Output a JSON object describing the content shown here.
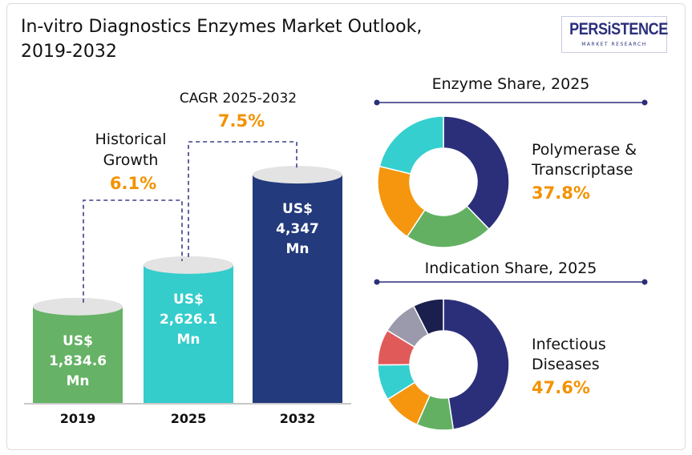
{
  "title": {
    "line1": "In-vitro Diagnostics Enzymes Market Outlook,",
    "line2": "2019-2032"
  },
  "logo": {
    "wordmark": "PERSiSTENCE",
    "tagline": "MARKET RESEARCH"
  },
  "chart_data": [
    {
      "type": "bar",
      "categories": [
        "2019",
        "2025",
        "2032"
      ],
      "values": [
        1834.6,
        2626.1,
        4347
      ],
      "value_labels": [
        [
          "US$",
          "1,834.6",
          "Mn"
        ],
        [
          "US$",
          "2,626.1",
          "Mn"
        ],
        [
          "US$",
          "4,347",
          "Mn"
        ]
      ],
      "colors": [
        "#66b266",
        "#35cccc",
        "#233a7c"
      ],
      "ylim": [
        0,
        4800
      ],
      "annotations": [
        {
          "text_lines": [
            "Historical",
            "Growth"
          ],
          "value": "6.1%",
          "value_color": "#f39200"
        },
        {
          "text_lines": [
            "CAGR 2025-2032"
          ],
          "value": "7.5%",
          "value_color": "#f39200"
        }
      ]
    },
    {
      "type": "pie",
      "title": "Enzyme Share, 2025",
      "donut": true,
      "slices": [
        {
          "label": "Polymerase & Transcriptase",
          "value": 37.8,
          "color": "#2b2f7a"
        },
        {
          "label": "",
          "value": 21.5,
          "color": "#63b063"
        },
        {
          "label": "",
          "value": 19.5,
          "color": "#f5960e"
        },
        {
          "label": "",
          "value": 21.2,
          "color": "#35cfcf"
        }
      ],
      "callout": {
        "label_lines": [
          "Polymerase &",
          "Transcriptase"
        ],
        "value": "37.8%",
        "value_color": "#f39200"
      }
    },
    {
      "type": "pie",
      "title": "Indication Share, 2025",
      "donut": true,
      "slices": [
        {
          "label": "Infectious Diseases",
          "value": 47.6,
          "color": "#2b2f7a"
        },
        {
          "label": "",
          "value": 9.0,
          "color": "#63b063"
        },
        {
          "label": "",
          "value": 9.5,
          "color": "#f5960e"
        },
        {
          "label": "",
          "value": 8.8,
          "color": "#35cfcf"
        },
        {
          "label": "",
          "value": 8.8,
          "color": "#e15a5a"
        },
        {
          "label": "",
          "value": 8.8,
          "color": "#9a9aac"
        },
        {
          "label": "",
          "value": 7.5,
          "color": "#1b1f4d"
        }
      ],
      "callout": {
        "label_lines": [
          "Infectious",
          "Diseases"
        ],
        "value": "47.6%",
        "value_color": "#f39200"
      }
    }
  ]
}
